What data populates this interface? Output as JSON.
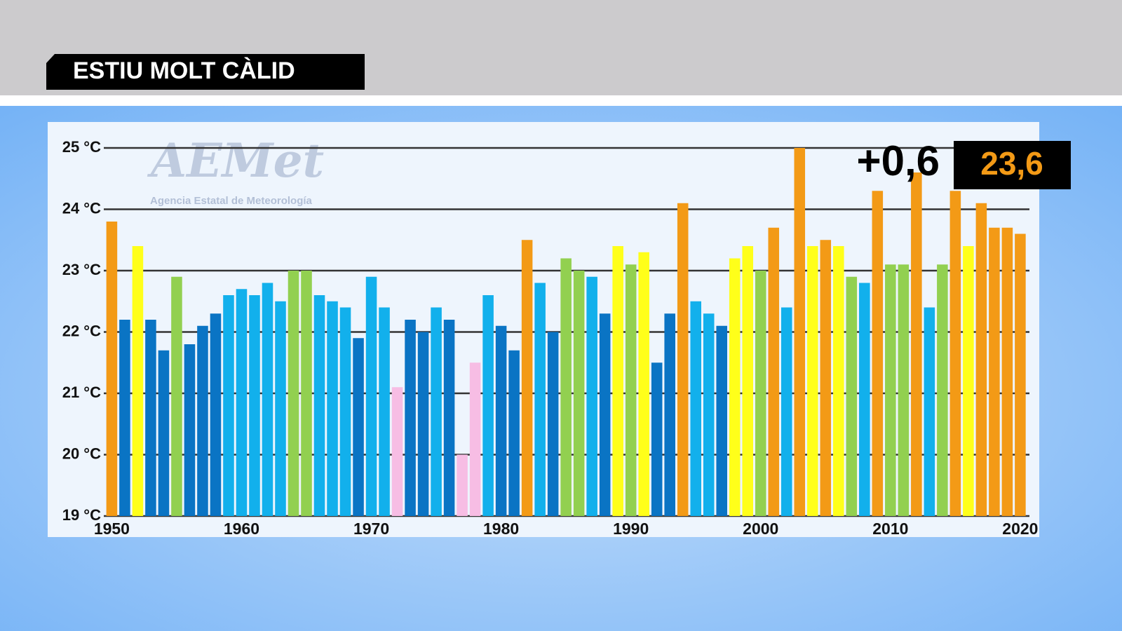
{
  "header": {
    "title": "ESTIU MOLT CÀLID"
  },
  "logo": {
    "name": "AEMet",
    "subtitle": "Agencia Estatal de Meteorología"
  },
  "chart_data": {
    "type": "bar",
    "x": [
      1950,
      1951,
      1952,
      1953,
      1954,
      1955,
      1956,
      1957,
      1958,
      1959,
      1960,
      1961,
      1962,
      1963,
      1964,
      1965,
      1966,
      1967,
      1968,
      1969,
      1970,
      1971,
      1972,
      1973,
      1974,
      1975,
      1976,
      1977,
      1978,
      1979,
      1980,
      1981,
      1982,
      1983,
      1984,
      1985,
      1986,
      1987,
      1988,
      1989,
      1990,
      1991,
      1992,
      1993,
      1994,
      1995,
      1996,
      1997,
      1998,
      1999,
      2000,
      2001,
      2002,
      2003,
      2004,
      2005,
      2006,
      2007,
      2008,
      2009,
      2010,
      2011,
      2012,
      2013,
      2014,
      2015,
      2016,
      2017,
      2018,
      2019,
      2020
    ],
    "values": [
      23.8,
      22.2,
      23.4,
      22.2,
      21.7,
      22.9,
      21.8,
      22.1,
      22.3,
      22.6,
      22.7,
      22.6,
      22.8,
      22.5,
      23.0,
      23.0,
      22.6,
      22.5,
      22.4,
      21.9,
      22.9,
      22.4,
      21.1,
      22.2,
      22.0,
      22.4,
      22.2,
      20.0,
      21.5,
      22.6,
      22.1,
      21.7,
      23.5,
      22.8,
      22.0,
      23.2,
      23.0,
      22.9,
      22.3,
      23.4,
      23.1,
      23.3,
      21.5,
      22.3,
      24.1,
      22.5,
      22.3,
      22.1,
      23.2,
      23.4,
      23.0,
      23.7,
      22.4,
      25.0,
      23.4,
      23.5,
      23.4,
      22.9,
      22.8,
      24.3,
      23.1,
      23.1,
      24.6,
      22.4,
      23.1,
      24.3,
      23.4,
      24.1,
      23.7,
      23.7,
      23.6
    ],
    "colors": [
      "#f39a16",
      "#0a74c4",
      "#ffff1a",
      "#0a74c4",
      "#0a74c4",
      "#92d050",
      "#0a74c4",
      "#0a74c4",
      "#0a74c4",
      "#12b0ec",
      "#12b0ec",
      "#12b0ec",
      "#12b0ec",
      "#12b0ec",
      "#92d050",
      "#92d050",
      "#12b0ec",
      "#12b0ec",
      "#12b0ec",
      "#0a74c4",
      "#12b0ec",
      "#12b0ec",
      "#f7bde4",
      "#0a74c4",
      "#0a74c4",
      "#12b0ec",
      "#0a74c4",
      "#f7bde4",
      "#f7bde4",
      "#12b0ec",
      "#0a74c4",
      "#0a74c4",
      "#f39a16",
      "#12b0ec",
      "#0a74c4",
      "#92d050",
      "#92d050",
      "#12b0ec",
      "#0a74c4",
      "#ffff1a",
      "#92d050",
      "#ffff1a",
      "#0a74c4",
      "#0a74c4",
      "#f39a16",
      "#12b0ec",
      "#12b0ec",
      "#0a74c4",
      "#ffff1a",
      "#ffff1a",
      "#92d050",
      "#f39a16",
      "#12b0ec",
      "#f39a16",
      "#ffff1a",
      "#f39a16",
      "#ffff1a",
      "#92d050",
      "#12b0ec",
      "#f39a16",
      "#92d050",
      "#92d050",
      "#f39a16",
      "#12b0ec",
      "#92d050",
      "#f39a16",
      "#ffff1a",
      "#f39a16",
      "#f39a16",
      "#f39a16",
      "#f39a16"
    ],
    "xlim": [
      1949.6,
      2020.6
    ],
    "ylim": [
      19,
      25
    ],
    "xticks": [
      1950,
      1960,
      1970,
      1980,
      1990,
      2000,
      2010,
      2020
    ],
    "yticks": [
      {
        "value": 19,
        "label": "19 °C"
      },
      {
        "value": 20,
        "label": "20 °C"
      },
      {
        "value": 21,
        "label": "21 °C"
      },
      {
        "value": 22,
        "label": "22 °C"
      },
      {
        "value": 23,
        "label": "23 °C"
      },
      {
        "value": 24,
        "label": "24 °C"
      },
      {
        "value": 25,
        "label": "25 °C"
      }
    ],
    "grid": true,
    "annotations": [
      "+0,6",
      "23,6"
    ]
  }
}
